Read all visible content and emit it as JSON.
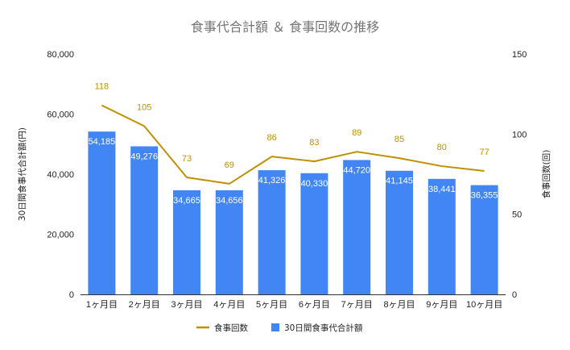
{
  "chart_data": {
    "type": "bar",
    "title": "食事代合計額 ＆ 食事回数の推移",
    "categories": [
      "1ヶ月目",
      "2ヶ月目",
      "3ヶ月目",
      "4ヶ月目",
      "5ヶ月目",
      "6ヶ月目",
      "7ヶ月目",
      "8ヶ月目",
      "9ヶ月目",
      "10ヶ月目"
    ],
    "series": [
      {
        "name": "30日間食事代合計額",
        "type": "bar",
        "axis": "left",
        "color": "#4285f4",
        "values": [
          54185,
          49276,
          34665,
          34656,
          41326,
          40330,
          44720,
          41145,
          38441,
          36355
        ],
        "labels": [
          "54,185",
          "49,276",
          "34,665",
          "34,656",
          "41,326",
          "40,330",
          "44,720",
          "41,145",
          "38,441",
          "36,355"
        ]
      },
      {
        "name": "食事回数",
        "type": "line",
        "axis": "right",
        "color": "#bf9000",
        "values": [
          118,
          105,
          73,
          69,
          86,
          83,
          89,
          85,
          80,
          77
        ],
        "labels": [
          "118",
          "105",
          "73",
          "69",
          "86",
          "83",
          "89",
          "85",
          "80",
          "77"
        ]
      }
    ],
    "ylabel_left": "30日間食事代合計額(円)",
    "ylabel_right": "食事回数(回)",
    "ylim_left": [
      0,
      80000
    ],
    "ylim_right": [
      0,
      150
    ],
    "yticks_left": [
      "0",
      "20,000",
      "40,000",
      "60,000",
      "80,000"
    ],
    "yticks_left_values": [
      0,
      20000,
      40000,
      60000,
      80000
    ],
    "yticks_right": [
      "0",
      "50",
      "100",
      "150"
    ],
    "yticks_right_values": [
      0,
      50,
      100,
      150
    ],
    "grid": false,
    "legend": {
      "position": "bottom",
      "entries": [
        "食事回数",
        "30日間食事代合計額"
      ]
    }
  }
}
